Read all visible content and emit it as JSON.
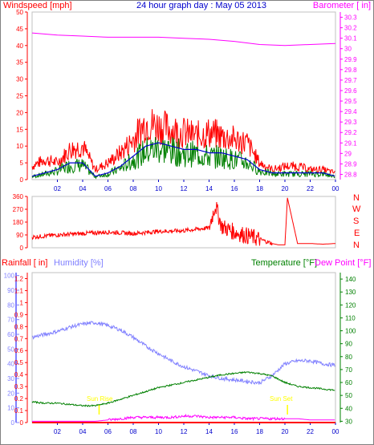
{
  "header": {
    "left_label": "Windspeed [mph]",
    "center_title": "24 hour graph day : May 05 2013",
    "right_label": "Barometer [ in]"
  },
  "direction_labels": [
    "N",
    "W",
    "S",
    "E",
    "N"
  ],
  "colors": {
    "wind": "#ff0000",
    "gust_band": "#ff0000",
    "avg_wind": "#0000cc",
    "avg_green": "#008000",
    "barometer": "#ff00ff",
    "direction": "#ff0000",
    "rain": "#ff0000",
    "humidity": "#8080ff",
    "temperature": "#008000",
    "dewpoint": "#ff00ff",
    "axis_blue": "#0000cc",
    "sun": "#ffff00"
  },
  "bottom_header": {
    "rain_label": "Rainfall [ in]",
    "humidity_label": "Humidity [%]",
    "temp_label": "Temperature [°F]",
    "dew_label": "Dew Point [°F]"
  },
  "annotations": {
    "sunrise": "Sun Rise",
    "sunset": "Sun Set"
  },
  "chart_data": [
    {
      "type": "line",
      "name": "wind-barometer",
      "x_ticks": [
        "02",
        "04",
        "06",
        "08",
        "10",
        "12",
        "14",
        "16",
        "18",
        "20",
        "22",
        "00"
      ],
      "x_range": [
        0,
        24
      ],
      "windspeed_ticks": [
        0,
        5,
        10,
        15,
        20,
        25,
        30,
        35,
        40,
        45,
        50
      ],
      "windspeed_range": [
        0,
        50
      ],
      "barometer_ticks": [
        "28.8",
        "28.9",
        "29",
        "29.1",
        "29.2",
        "29.3",
        "29.4",
        "29.5",
        "29.6",
        "29.7",
        "29.8",
        "29.9",
        "30",
        "30.1",
        "30.2",
        "30.3"
      ],
      "barometer_range": [
        28.75,
        30.35
      ],
      "series": [
        {
          "key": "gust",
          "x": [
            0,
            1,
            2,
            3,
            4,
            5,
            6,
            7,
            8,
            9,
            10,
            11,
            12,
            13,
            14,
            15,
            16,
            17,
            18,
            19,
            20,
            21,
            22,
            23,
            24
          ],
          "values": [
            4,
            6,
            5,
            9,
            10,
            3,
            5,
            8,
            12,
            17,
            16,
            15,
            14,
            13,
            14,
            13,
            12,
            11,
            5,
            3,
            4,
            4,
            3,
            3,
            2
          ]
        },
        {
          "key": "avg",
          "x": [
            0,
            1,
            2,
            3,
            4,
            5,
            6,
            7,
            8,
            9,
            10,
            11,
            12,
            13,
            14,
            15,
            16,
            17,
            18,
            19,
            20,
            21,
            22,
            23,
            24
          ],
          "values": [
            1,
            2,
            3,
            5,
            5,
            1,
            2,
            4,
            7,
            10,
            11,
            10,
            9,
            9,
            8,
            8,
            7,
            6,
            3,
            2,
            2,
            2,
            2,
            2,
            1
          ]
        },
        {
          "key": "barometer",
          "x": [
            0,
            2,
            4,
            6,
            8,
            10,
            12,
            14,
            16,
            18,
            20,
            22,
            24
          ],
          "values": [
            30.15,
            30.13,
            30.12,
            30.11,
            30.11,
            30.11,
            30.1,
            30.09,
            30.07,
            30.04,
            30.03,
            30.04,
            30.05
          ]
        }
      ]
    },
    {
      "type": "line",
      "name": "wind-direction",
      "y_ticks": [
        0,
        90,
        180,
        270,
        360
      ],
      "y_range": [
        0,
        360
      ],
      "series": [
        {
          "key": "direction",
          "x": [
            0,
            2,
            4,
            6,
            8,
            10,
            12,
            14,
            14.5,
            15,
            16,
            17,
            18,
            19,
            19.5,
            20,
            20.2,
            21,
            22,
            23,
            24
          ],
          "values": [
            75,
            90,
            100,
            110,
            100,
            115,
            120,
            140,
            300,
            150,
            110,
            85,
            60,
            30,
            20,
            20,
            350,
            30,
            30,
            25,
            30
          ]
        }
      ]
    },
    {
      "type": "line",
      "name": "rain-humidity-temperature",
      "rain_ticks": [
        "0",
        "0.1",
        "0.2",
        "0.3",
        "0.4",
        "0.5",
        "0.6",
        "0.7",
        "0.8",
        "0.9",
        "1",
        "1.1",
        "1.2"
      ],
      "rain_range": [
        0,
        1.25
      ],
      "humidity_ticks": [
        0,
        10,
        20,
        30,
        40,
        50,
        60,
        70,
        80,
        90,
        100
      ],
      "humidity_range": [
        0,
        102
      ],
      "temp_ticks": [
        30,
        40,
        50,
        60,
        70,
        80,
        90,
        100,
        110,
        120,
        130,
        140
      ],
      "temp_range": [
        29,
        145
      ],
      "series": [
        {
          "key": "humidity",
          "x": [
            0,
            1,
            2,
            3,
            4,
            5,
            6,
            7,
            8,
            9,
            10,
            11,
            12,
            13,
            14,
            15,
            16,
            17,
            18,
            19,
            20,
            21,
            22,
            23,
            24
          ],
          "values": [
            58,
            60,
            62,
            65,
            67,
            68,
            66,
            63,
            58,
            52,
            47,
            42,
            38,
            35,
            32,
            30,
            29,
            28,
            27,
            32,
            40,
            42,
            42,
            40,
            39
          ]
        },
        {
          "key": "temperature",
          "x": [
            0,
            1,
            2,
            3,
            4,
            5,
            6,
            7,
            8,
            9,
            10,
            11,
            12,
            13,
            14,
            15,
            16,
            17,
            18,
            19,
            20,
            21,
            22,
            23,
            24
          ],
          "values": [
            45,
            44,
            44,
            43,
            42,
            42,
            44,
            47,
            50,
            53,
            56,
            58,
            60,
            62,
            64,
            66,
            67,
            68,
            67,
            65,
            60,
            57,
            56,
            55,
            54
          ]
        },
        {
          "key": "dewpoint",
          "x": [
            0,
            1,
            2,
            3,
            4,
            5,
            6,
            7,
            8,
            9,
            10,
            11,
            12,
            13,
            14,
            15,
            16,
            17,
            18,
            19,
            20,
            21,
            22,
            23,
            24
          ],
          "values": [
            30,
            30,
            30,
            30,
            30,
            30,
            31,
            32,
            33,
            33,
            33,
            33,
            34,
            34,
            33,
            33,
            33,
            32,
            32,
            32,
            32,
            32,
            31,
            31,
            31
          ]
        },
        {
          "key": "rain",
          "x": [
            0,
            24
          ],
          "values": [
            0,
            0
          ]
        }
      ],
      "sun_rise_x": 5.3,
      "sun_set_x": 20.2
    }
  ]
}
